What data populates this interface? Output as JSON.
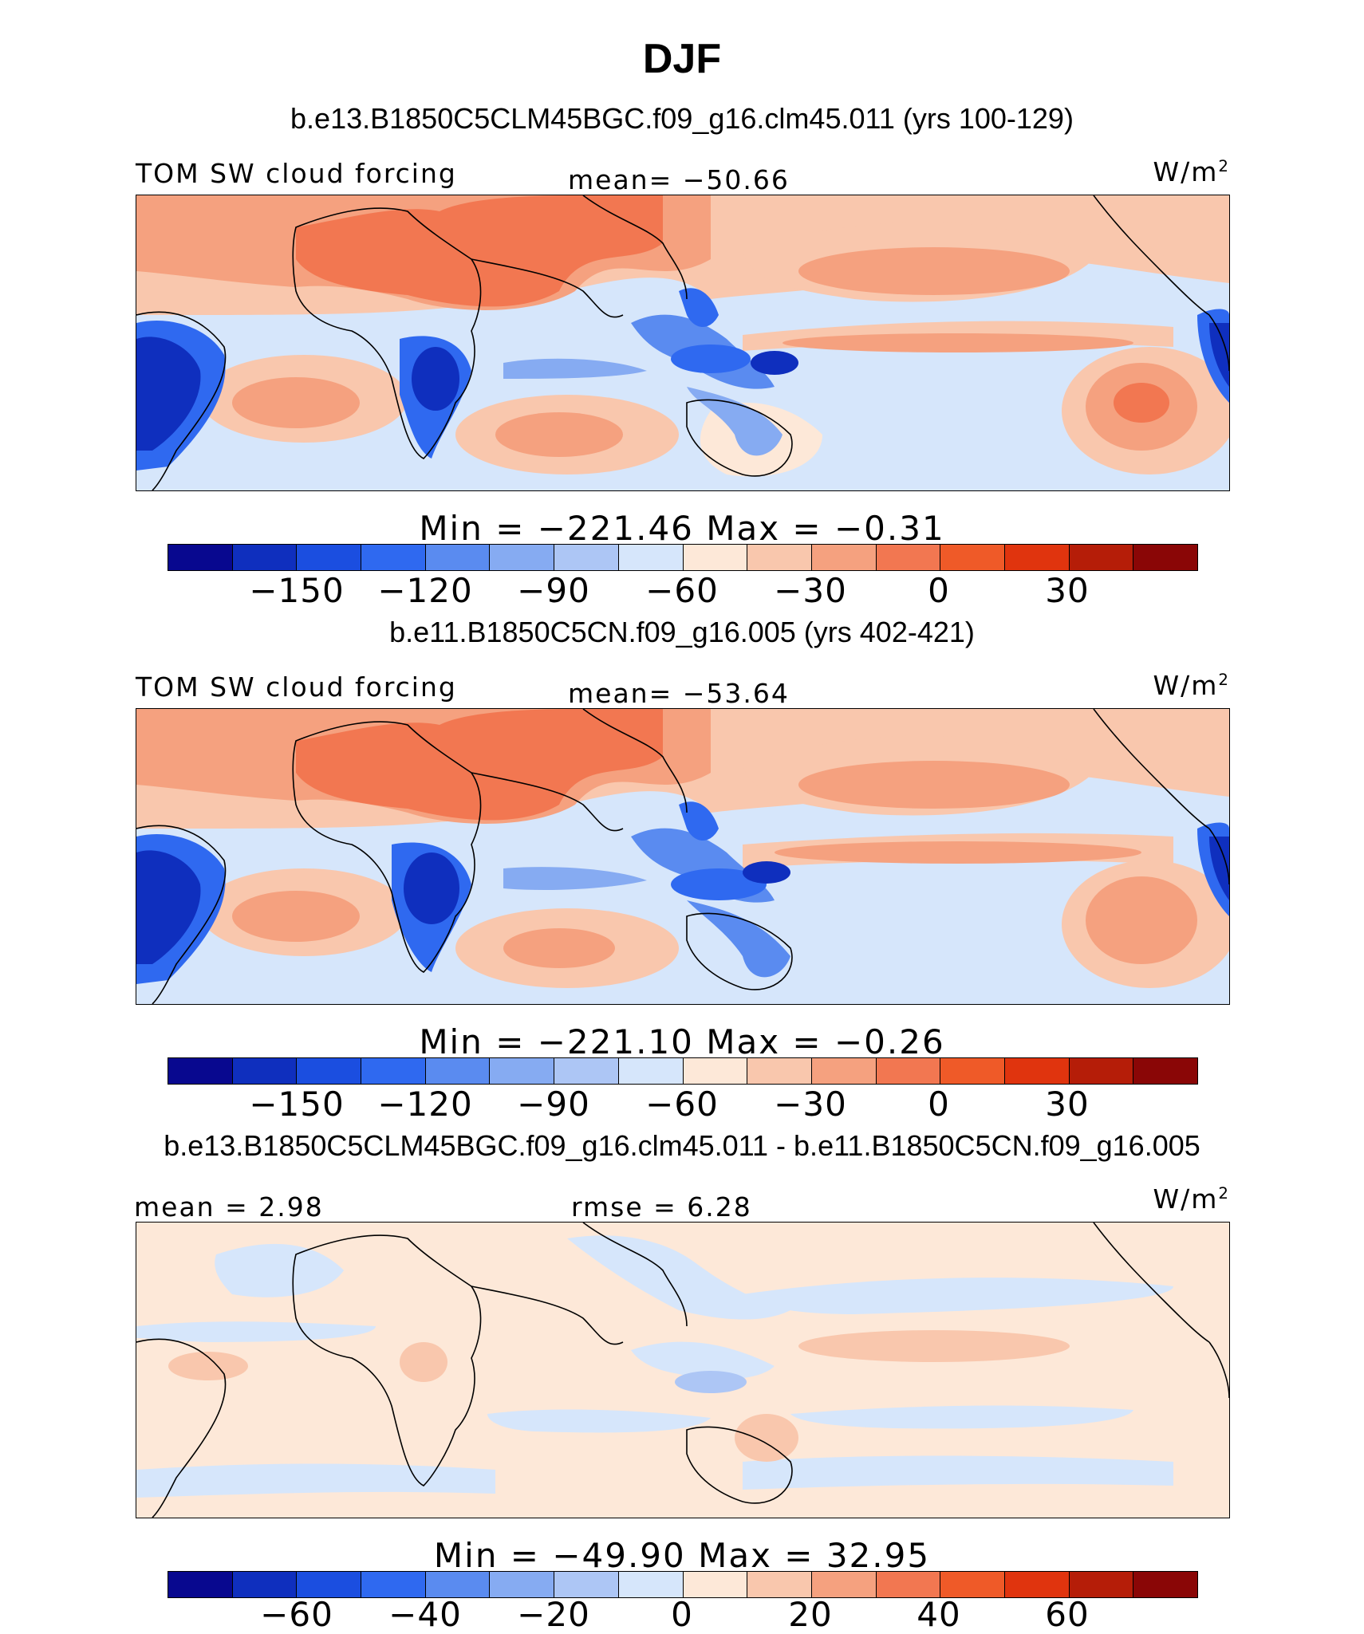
{
  "figure": {
    "title": "DJF"
  },
  "palette": [
    "#08088f",
    "#0f2fbe",
    "#1b4ee0",
    "#2f69f0",
    "#5a8bf0",
    "#86abf2",
    "#adc6f5",
    "#d6e6fb",
    "#fde8d8",
    "#f9c7ad",
    "#f5a17f",
    "#f27751",
    "#ef5a28",
    "#e0340e",
    "#b51d08",
    "#8a0606"
  ],
  "panels": [
    {
      "case": "b.e13.B1850C5CLM45BGC.f09_g16.clm45.011 (yrs 100-129)",
      "left_label": "TOM SW cloud forcing",
      "center_label": "mean= −50.66",
      "units_base": "W/m",
      "units_exp": "2",
      "minmax": "Min  =  −221.46  Max  =    −0.31",
      "colorbar_ticks": [
        "−150",
        "−120",
        "−90",
        "−60",
        "−30",
        "0",
        "30"
      ]
    },
    {
      "case": "b.e11.B1850C5CN.f09_g16.005 (yrs 402-421)",
      "left_label": "TOM SW cloud forcing",
      "center_label": "mean= −53.64",
      "units_base": "W/m",
      "units_exp": "2",
      "minmax": "Min  =  −221.10  Max  =    −0.26",
      "colorbar_ticks": [
        "−150",
        "−120",
        "−90",
        "−60",
        "−30",
        "0",
        "30"
      ]
    },
    {
      "case": "b.e13.B1850C5CLM45BGC.f09_g16.clm45.011 - b.e11.B1850C5CN.f09_g16.005",
      "left_label": "mean =    2.98",
      "center_label": "rmse =    6.28",
      "units_base": "W/m",
      "units_exp": "2",
      "minmax": "Min  =  −49.90  Max  =    32.95",
      "colorbar_ticks": [
        "−60",
        "−40",
        "−20",
        "0",
        "20",
        "40",
        "60"
      ]
    }
  ]
}
